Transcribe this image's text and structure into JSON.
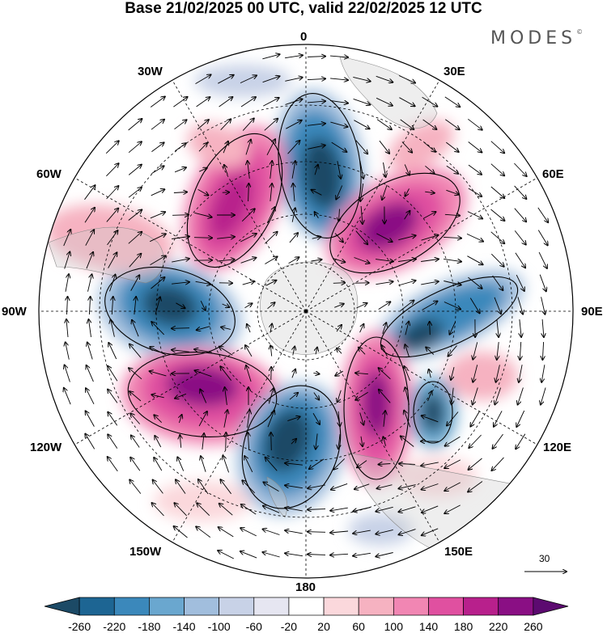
{
  "header": {
    "title": "Base 21/02/2025 00 UTC, valid 22/02/2025 12 UTC",
    "brand": "MODES",
    "brand_mark": "©"
  },
  "map": {
    "projection": "polar stereographic (south pole)",
    "field": "anomaly (shaded) with wind vectors",
    "longitude_labels": {
      "lon_0": "0",
      "lon_30e": "30E",
      "lon_60e": "60E",
      "lon_90e": "90E",
      "lon_120e": "120E",
      "lon_150e": "150E",
      "lon_180": "180",
      "lon_150w": "150W",
      "lon_120w": "120W",
      "lon_90w": "90W",
      "lon_60w": "60W",
      "lon_30w": "30W"
    },
    "reference_vector": "30"
  },
  "colorbar": {
    "labels": [
      "-260",
      "-220",
      "-180",
      "-140",
      "-100",
      "-60",
      "-20",
      "20",
      "60",
      "100",
      "140",
      "180",
      "220",
      "260"
    ],
    "colors": [
      "#1c4a66",
      "#1d6593",
      "#3b88bb",
      "#6aa7cf",
      "#a1bedd",
      "#c8d2e7",
      "#e6e6f1",
      "#ffffff",
      "#fbd8dc",
      "#f6b2c1",
      "#f186b3",
      "#e050a0",
      "#b8208c",
      "#8a0f84",
      "#5c0a70"
    ]
  }
}
